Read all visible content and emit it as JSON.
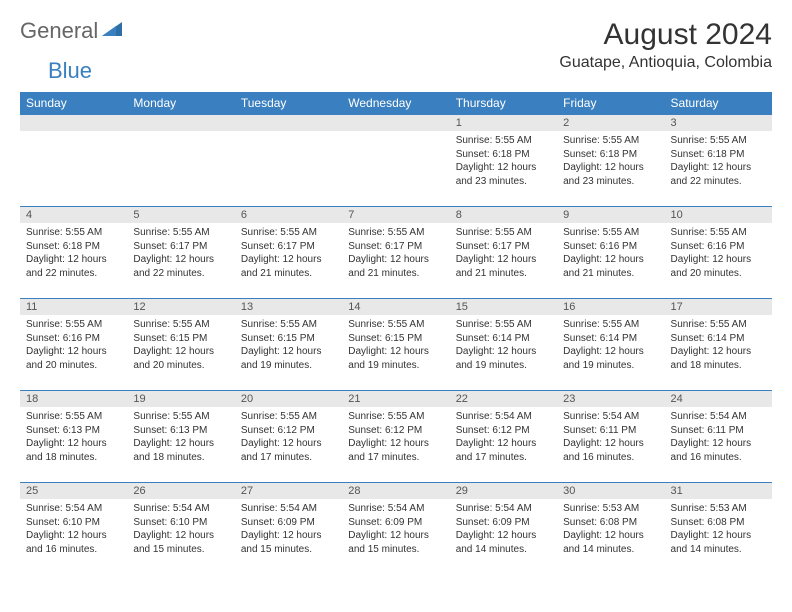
{
  "brand": {
    "part1": "General",
    "part2": "Blue"
  },
  "title": "August 2024",
  "location": "Guatape, Antioquia, Colombia",
  "colors": {
    "header_bg": "#3a7fbf",
    "header_text": "#ffffff",
    "daynum_bg": "#e8e8e8",
    "border": "#3a7fbf",
    "brand_gray": "#666666",
    "brand_blue": "#3a7fbf"
  },
  "weekdays": [
    "Sunday",
    "Monday",
    "Tuesday",
    "Wednesday",
    "Thursday",
    "Friday",
    "Saturday"
  ],
  "weeks": [
    [
      {
        "day": "",
        "lines": []
      },
      {
        "day": "",
        "lines": []
      },
      {
        "day": "",
        "lines": []
      },
      {
        "day": "",
        "lines": []
      },
      {
        "day": "1",
        "lines": [
          "Sunrise: 5:55 AM",
          "Sunset: 6:18 PM",
          "Daylight: 12 hours and 23 minutes."
        ]
      },
      {
        "day": "2",
        "lines": [
          "Sunrise: 5:55 AM",
          "Sunset: 6:18 PM",
          "Daylight: 12 hours and 23 minutes."
        ]
      },
      {
        "day": "3",
        "lines": [
          "Sunrise: 5:55 AM",
          "Sunset: 6:18 PM",
          "Daylight: 12 hours and 22 minutes."
        ]
      }
    ],
    [
      {
        "day": "4",
        "lines": [
          "Sunrise: 5:55 AM",
          "Sunset: 6:18 PM",
          "Daylight: 12 hours and 22 minutes."
        ]
      },
      {
        "day": "5",
        "lines": [
          "Sunrise: 5:55 AM",
          "Sunset: 6:17 PM",
          "Daylight: 12 hours and 22 minutes."
        ]
      },
      {
        "day": "6",
        "lines": [
          "Sunrise: 5:55 AM",
          "Sunset: 6:17 PM",
          "Daylight: 12 hours and 21 minutes."
        ]
      },
      {
        "day": "7",
        "lines": [
          "Sunrise: 5:55 AM",
          "Sunset: 6:17 PM",
          "Daylight: 12 hours and 21 minutes."
        ]
      },
      {
        "day": "8",
        "lines": [
          "Sunrise: 5:55 AM",
          "Sunset: 6:17 PM",
          "Daylight: 12 hours and 21 minutes."
        ]
      },
      {
        "day": "9",
        "lines": [
          "Sunrise: 5:55 AM",
          "Sunset: 6:16 PM",
          "Daylight: 12 hours and 21 minutes."
        ]
      },
      {
        "day": "10",
        "lines": [
          "Sunrise: 5:55 AM",
          "Sunset: 6:16 PM",
          "Daylight: 12 hours and 20 minutes."
        ]
      }
    ],
    [
      {
        "day": "11",
        "lines": [
          "Sunrise: 5:55 AM",
          "Sunset: 6:16 PM",
          "Daylight: 12 hours and 20 minutes."
        ]
      },
      {
        "day": "12",
        "lines": [
          "Sunrise: 5:55 AM",
          "Sunset: 6:15 PM",
          "Daylight: 12 hours and 20 minutes."
        ]
      },
      {
        "day": "13",
        "lines": [
          "Sunrise: 5:55 AM",
          "Sunset: 6:15 PM",
          "Daylight: 12 hours and 19 minutes."
        ]
      },
      {
        "day": "14",
        "lines": [
          "Sunrise: 5:55 AM",
          "Sunset: 6:15 PM",
          "Daylight: 12 hours and 19 minutes."
        ]
      },
      {
        "day": "15",
        "lines": [
          "Sunrise: 5:55 AM",
          "Sunset: 6:14 PM",
          "Daylight: 12 hours and 19 minutes."
        ]
      },
      {
        "day": "16",
        "lines": [
          "Sunrise: 5:55 AM",
          "Sunset: 6:14 PM",
          "Daylight: 12 hours and 19 minutes."
        ]
      },
      {
        "day": "17",
        "lines": [
          "Sunrise: 5:55 AM",
          "Sunset: 6:14 PM",
          "Daylight: 12 hours and 18 minutes."
        ]
      }
    ],
    [
      {
        "day": "18",
        "lines": [
          "Sunrise: 5:55 AM",
          "Sunset: 6:13 PM",
          "Daylight: 12 hours and 18 minutes."
        ]
      },
      {
        "day": "19",
        "lines": [
          "Sunrise: 5:55 AM",
          "Sunset: 6:13 PM",
          "Daylight: 12 hours and 18 minutes."
        ]
      },
      {
        "day": "20",
        "lines": [
          "Sunrise: 5:55 AM",
          "Sunset: 6:12 PM",
          "Daylight: 12 hours and 17 minutes."
        ]
      },
      {
        "day": "21",
        "lines": [
          "Sunrise: 5:55 AM",
          "Sunset: 6:12 PM",
          "Daylight: 12 hours and 17 minutes."
        ]
      },
      {
        "day": "22",
        "lines": [
          "Sunrise: 5:54 AM",
          "Sunset: 6:12 PM",
          "Daylight: 12 hours and 17 minutes."
        ]
      },
      {
        "day": "23",
        "lines": [
          "Sunrise: 5:54 AM",
          "Sunset: 6:11 PM",
          "Daylight: 12 hours and 16 minutes."
        ]
      },
      {
        "day": "24",
        "lines": [
          "Sunrise: 5:54 AM",
          "Sunset: 6:11 PM",
          "Daylight: 12 hours and 16 minutes."
        ]
      }
    ],
    [
      {
        "day": "25",
        "lines": [
          "Sunrise: 5:54 AM",
          "Sunset: 6:10 PM",
          "Daylight: 12 hours and 16 minutes."
        ]
      },
      {
        "day": "26",
        "lines": [
          "Sunrise: 5:54 AM",
          "Sunset: 6:10 PM",
          "Daylight: 12 hours and 15 minutes."
        ]
      },
      {
        "day": "27",
        "lines": [
          "Sunrise: 5:54 AM",
          "Sunset: 6:09 PM",
          "Daylight: 12 hours and 15 minutes."
        ]
      },
      {
        "day": "28",
        "lines": [
          "Sunrise: 5:54 AM",
          "Sunset: 6:09 PM",
          "Daylight: 12 hours and 15 minutes."
        ]
      },
      {
        "day": "29",
        "lines": [
          "Sunrise: 5:54 AM",
          "Sunset: 6:09 PM",
          "Daylight: 12 hours and 14 minutes."
        ]
      },
      {
        "day": "30",
        "lines": [
          "Sunrise: 5:53 AM",
          "Sunset: 6:08 PM",
          "Daylight: 12 hours and 14 minutes."
        ]
      },
      {
        "day": "31",
        "lines": [
          "Sunrise: 5:53 AM",
          "Sunset: 6:08 PM",
          "Daylight: 12 hours and 14 minutes."
        ]
      }
    ]
  ]
}
